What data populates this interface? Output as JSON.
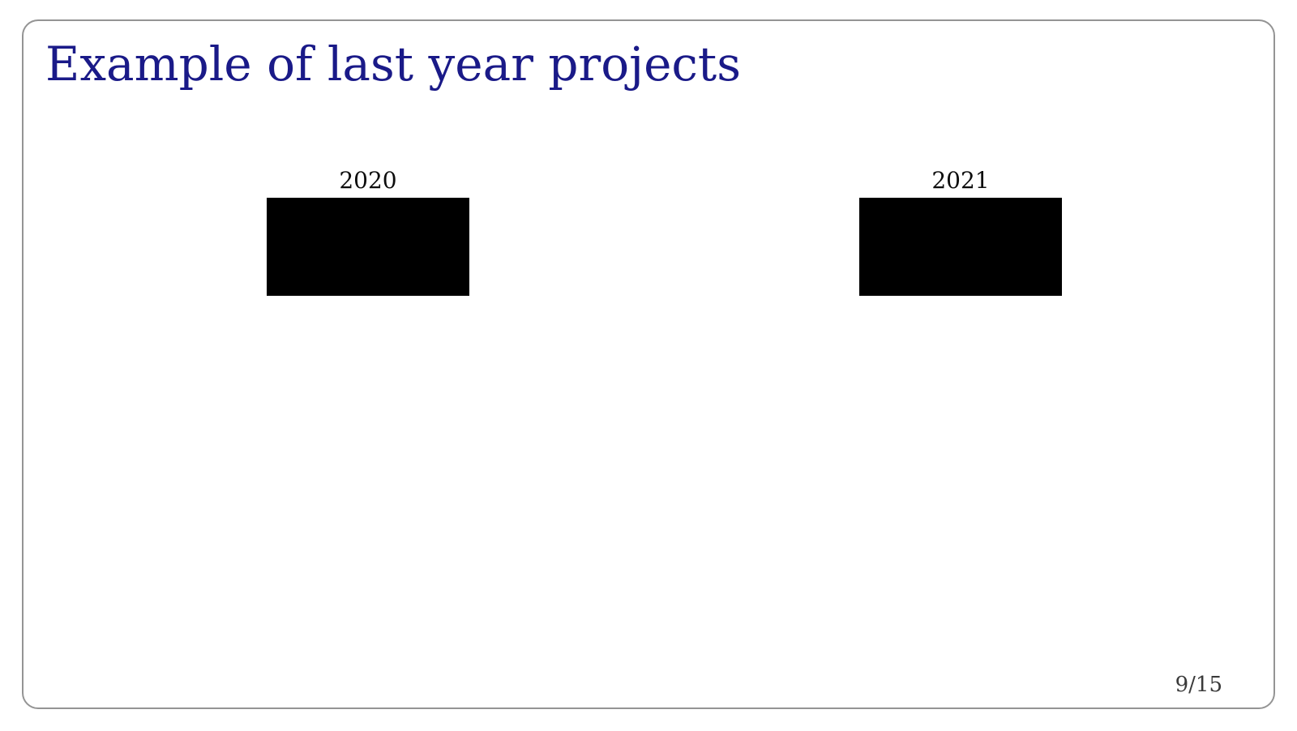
{
  "slide": {
    "title": "Example of last year projects",
    "projects": [
      {
        "year": "2020"
      },
      {
        "year": "2021"
      }
    ],
    "page_indicator": "9/15",
    "colors": {
      "title_text": "#1a1a88",
      "project_image_fill": "#000000",
      "slide_border": "#949494",
      "page_indicator_text": "#3a3a3a",
      "background": "#ffffff"
    }
  }
}
